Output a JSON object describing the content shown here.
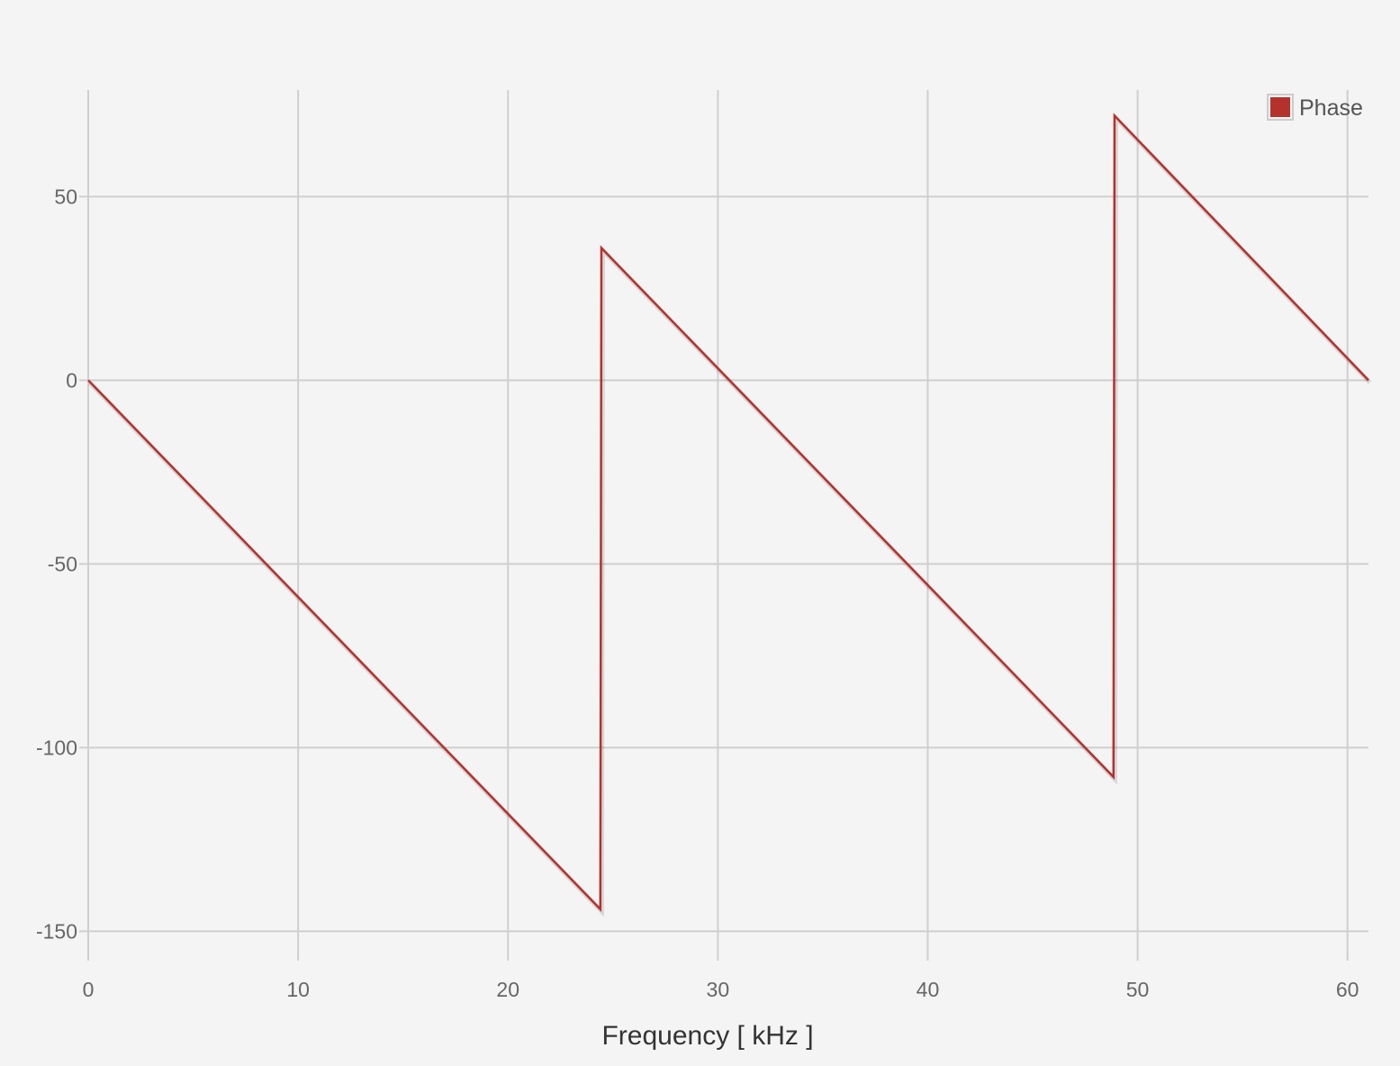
{
  "chart_data": {
    "type": "line",
    "title": "",
    "xlabel": "Frequency [ kHz ]",
    "ylabel": "",
    "xlim": [
      0,
      61
    ],
    "ylim": [
      -158,
      79
    ],
    "x_ticks": [
      0,
      10,
      20,
      30,
      40,
      50,
      60
    ],
    "y_ticks": [
      -150,
      -100,
      -50,
      0,
      50
    ],
    "grid": true,
    "legend_position": "top-right",
    "series": [
      {
        "name": "Phase",
        "color": "#b5312c",
        "x": [
          0,
          24.4,
          24.45,
          48.85,
          48.9,
          61
        ],
        "y": [
          0,
          -144,
          36,
          -108,
          72,
          0
        ]
      }
    ]
  },
  "colors": {
    "background": "#f4f4f4",
    "grid": "#cfcfcf",
    "series": "#b5312c"
  }
}
